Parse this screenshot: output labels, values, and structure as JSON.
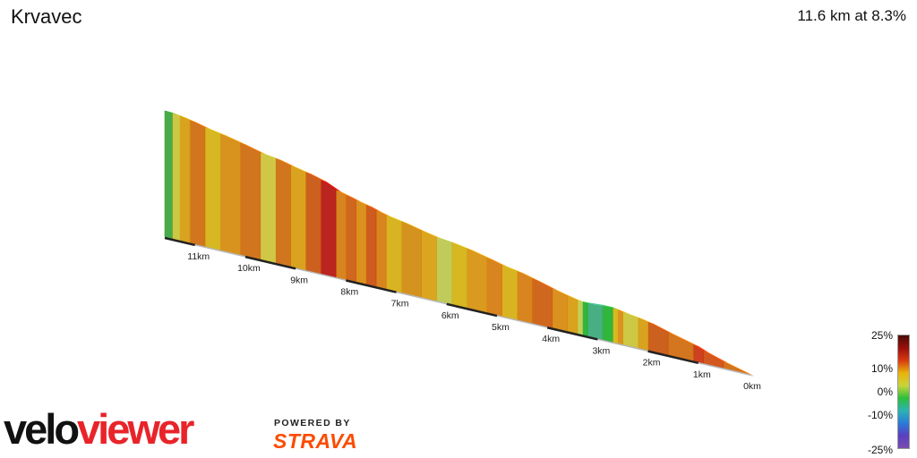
{
  "header": {
    "title": "Krvavec",
    "summary": "11.6 km at 8.3%"
  },
  "legend": {
    "labels": [
      "25%",
      "10%",
      "0%",
      "-10%",
      "-25%"
    ],
    "gradient_colors": [
      "#4a0d06",
      "#9a0f0c",
      "#d93a10",
      "#e9b30a",
      "#c9d53a",
      "#2cbf3a",
      "#2bb4b3",
      "#2a7bd8",
      "#5a3fc0",
      "#7a4bb0"
    ]
  },
  "branding": {
    "logo_part1": "velo",
    "logo_part2": "viewer",
    "powered_by": "POWERED BY",
    "strava": "STRAVA"
  },
  "chart_data": {
    "type": "area",
    "title": "Krvavec",
    "x_unit": "km",
    "x_range": [
      0,
      11.6
    ],
    "average_gradient_percent": 8.3,
    "distance_km": 11.6,
    "x_ticks": [
      "0km",
      "1km",
      "2km",
      "3km",
      "4km",
      "5km",
      "6km",
      "7km",
      "8km",
      "9km",
      "10km",
      "11km"
    ],
    "segments": [
      {
        "from_km": 0.0,
        "to_km": 0.5,
        "gradient": 9,
        "color": "#cf6a0c"
      },
      {
        "from_km": 0.5,
        "to_km": 0.9,
        "gradient": 11,
        "color": "#cf4a0c"
      },
      {
        "from_km": 0.9,
        "to_km": 1.1,
        "gradient": 14,
        "color": "#c9300d"
      },
      {
        "from_km": 1.1,
        "to_km": 1.6,
        "gradient": 9,
        "color": "#cf6a0c"
      },
      {
        "from_km": 1.6,
        "to_km": 2.0,
        "gradient": 10,
        "color": "#c8520c"
      },
      {
        "from_km": 2.0,
        "to_km": 2.2,
        "gradient": 7,
        "color": "#d69a0c"
      },
      {
        "from_km": 2.2,
        "to_km": 2.5,
        "gradient": 5,
        "color": "#c9c234"
      },
      {
        "from_km": 2.5,
        "to_km": 2.6,
        "gradient": 8,
        "color": "#d9890e"
      },
      {
        "from_km": 2.6,
        "to_km": 2.7,
        "gradient": 6,
        "color": "#d8b20f"
      },
      {
        "from_km": 2.7,
        "to_km": 2.9,
        "gradient": 0,
        "color": "#20b02a"
      },
      {
        "from_km": 2.9,
        "to_km": 3.2,
        "gradient": -3,
        "color": "#38a878"
      },
      {
        "from_km": 3.2,
        "to_km": 3.3,
        "gradient": 0,
        "color": "#20b02a"
      },
      {
        "from_km": 3.3,
        "to_km": 3.4,
        "gradient": 4,
        "color": "#bfca4a"
      },
      {
        "from_km": 3.4,
        "to_km": 3.6,
        "gradient": 7,
        "color": "#d69a0c"
      },
      {
        "from_km": 3.6,
        "to_km": 3.9,
        "gradient": 8,
        "color": "#d7880c"
      },
      {
        "from_km": 3.9,
        "to_km": 4.3,
        "gradient": 10,
        "color": "#cc5a0c"
      },
      {
        "from_km": 4.3,
        "to_km": 4.6,
        "gradient": 9,
        "color": "#d57a0c"
      },
      {
        "from_km": 4.6,
        "to_km": 4.9,
        "gradient": 6,
        "color": "#d6ae0f"
      },
      {
        "from_km": 4.9,
        "to_km": 5.2,
        "gradient": 9,
        "color": "#d57a0c"
      },
      {
        "from_km": 5.2,
        "to_km": 5.6,
        "gradient": 8,
        "color": "#d7900c"
      },
      {
        "from_km": 5.6,
        "to_km": 5.9,
        "gradient": 6,
        "color": "#d4b10f"
      },
      {
        "from_km": 5.9,
        "to_km": 6.2,
        "gradient": 4,
        "color": "#bcc74c"
      },
      {
        "from_km": 6.2,
        "to_km": 6.5,
        "gradient": 7,
        "color": "#d89d0c"
      },
      {
        "from_km": 6.5,
        "to_km": 6.9,
        "gradient": 8,
        "color": "#d08a0c"
      },
      {
        "from_km": 6.9,
        "to_km": 7.2,
        "gradient": 6,
        "color": "#d6ae0f"
      },
      {
        "from_km": 7.2,
        "to_km": 7.4,
        "gradient": 9,
        "color": "#d57a0c"
      },
      {
        "from_km": 7.4,
        "to_km": 7.6,
        "gradient": 11,
        "color": "#ca4d0c"
      },
      {
        "from_km": 7.6,
        "to_km": 7.8,
        "gradient": 8,
        "color": "#d7880c"
      },
      {
        "from_km": 7.8,
        "to_km": 8.0,
        "gradient": 10,
        "color": "#cc5a0c"
      },
      {
        "from_km": 8.0,
        "to_km": 8.2,
        "gradient": 9,
        "color": "#d57a0c"
      },
      {
        "from_km": 8.2,
        "to_km": 8.5,
        "gradient": 16,
        "color": "#b5120c"
      },
      {
        "from_km": 8.5,
        "to_km": 8.8,
        "gradient": 10,
        "color": "#c8520c"
      },
      {
        "from_km": 8.8,
        "to_km": 9.1,
        "gradient": 7,
        "color": "#d69a0c"
      },
      {
        "from_km": 9.1,
        "to_km": 9.4,
        "gradient": 9,
        "color": "#cd6a0c"
      },
      {
        "from_km": 9.4,
        "to_km": 9.7,
        "gradient": 5,
        "color": "#ccc236"
      },
      {
        "from_km": 9.7,
        "to_km": 10.1,
        "gradient": 9,
        "color": "#cd6a0c"
      },
      {
        "from_km": 10.1,
        "to_km": 10.5,
        "gradient": 8,
        "color": "#d58a0c"
      },
      {
        "from_km": 10.5,
        "to_km": 10.8,
        "gradient": 6,
        "color": "#d4b10f"
      },
      {
        "from_km": 10.8,
        "to_km": 11.1,
        "gradient": 9,
        "color": "#cd6a0c"
      },
      {
        "from_km": 11.1,
        "to_km": 11.3,
        "gradient": 7,
        "color": "#d69a0c"
      },
      {
        "from_km": 11.3,
        "to_km": 11.45,
        "gradient": 5,
        "color": "#c9c234"
      },
      {
        "from_km": 11.45,
        "to_km": 11.6,
        "gradient": 1,
        "color": "#3aa33a"
      }
    ]
  }
}
